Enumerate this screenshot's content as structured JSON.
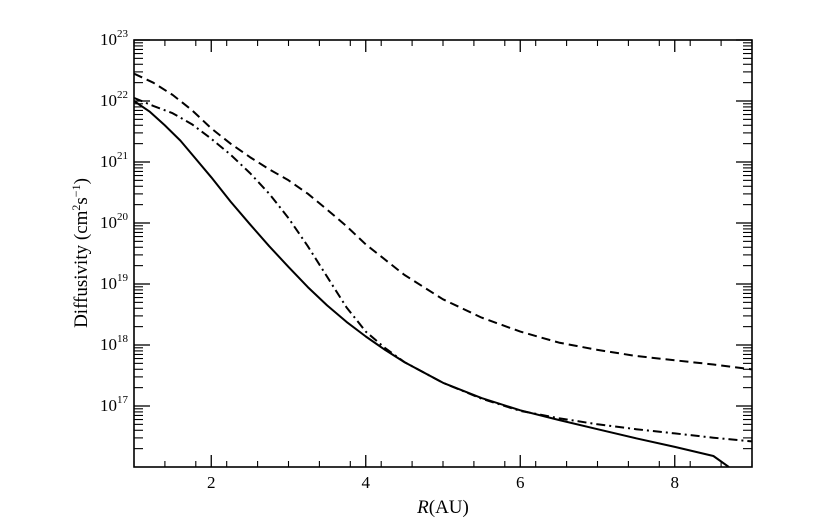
{
  "chart_data": {
    "type": "line",
    "xlabel_italic": "R",
    "xlabel_rest": "(AU)",
    "ylabel_parts": [
      "Diffusivity (cm",
      "2",
      "s",
      "−1",
      ")"
    ],
    "xlim": [
      1,
      9
    ],
    "ylog_range": [
      16,
      23
    ],
    "x_ticks": [
      2,
      4,
      6,
      8
    ],
    "x_tick_labels": [
      "2",
      "4",
      "6",
      "8"
    ],
    "y_ticks": [
      17,
      18,
      19,
      20,
      21,
      22,
      23
    ],
    "y_tick_base": "10",
    "y_tick_exponents": [
      "17",
      "18",
      "19",
      "20",
      "21",
      "22",
      "23"
    ],
    "grid": false,
    "series": [
      {
        "style": "solid",
        "x": [
          1.0,
          1.2,
          1.4,
          1.6,
          1.8,
          2.0,
          2.25,
          2.5,
          2.75,
          3.0,
          3.25,
          3.5,
          3.75,
          4.0,
          4.25,
          4.5,
          5.0,
          5.5,
          6.0,
          6.5,
          7.0,
          7.5,
          8.0,
          8.5,
          8.7
        ],
        "y": [
          22.0,
          21.83,
          21.6,
          21.35,
          21.05,
          20.75,
          20.35,
          19.98,
          19.62,
          19.28,
          18.95,
          18.65,
          18.38,
          18.14,
          17.92,
          17.72,
          17.38,
          17.13,
          16.93,
          16.77,
          16.62,
          16.47,
          16.33,
          16.18,
          16.0
        ]
      },
      {
        "style": "dashed",
        "x": [
          1.0,
          1.25,
          1.5,
          1.75,
          2.0,
          2.25,
          2.5,
          2.75,
          3.0,
          3.25,
          3.5,
          3.75,
          4.0,
          4.5,
          5.0,
          5.5,
          6.0,
          6.5,
          7.0,
          7.5,
          8.0,
          8.5,
          9.0
        ],
        "y": [
          22.45,
          22.3,
          22.1,
          21.85,
          21.55,
          21.3,
          21.08,
          20.88,
          20.7,
          20.48,
          20.22,
          19.95,
          19.65,
          19.15,
          18.75,
          18.45,
          18.22,
          18.04,
          17.92,
          17.82,
          17.75,
          17.68,
          17.6
        ]
      },
      {
        "style": "dashdot",
        "x": [
          1.0,
          1.25,
          1.5,
          1.75,
          2.0,
          2.25,
          2.5,
          2.75,
          3.0,
          3.25,
          3.5,
          3.75,
          4.0,
          4.25,
          4.5,
          5.0,
          5.5,
          6.0,
          6.5,
          7.0,
          7.5,
          8.0,
          8.5,
          9.0
        ],
        "y": [
          22.05,
          21.92,
          21.8,
          21.62,
          21.38,
          21.12,
          20.82,
          20.48,
          20.08,
          19.62,
          19.12,
          18.62,
          18.22,
          17.95,
          17.72,
          17.38,
          17.12,
          16.92,
          16.8,
          16.7,
          16.62,
          16.55,
          16.48,
          16.42
        ]
      }
    ]
  }
}
